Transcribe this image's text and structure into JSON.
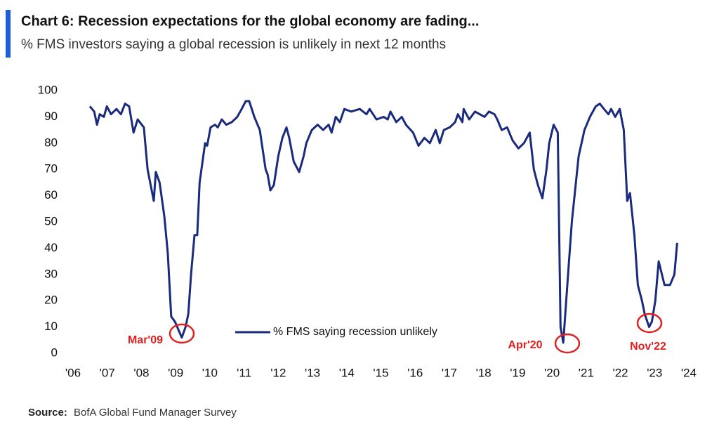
{
  "chart_data": {
    "type": "line",
    "title": "Chart 6: Recession expectations for the global economy are fading...",
    "subtitle": "% FMS investors saying a global recession is unlikely in next 12 months",
    "source": {
      "label": "Source:",
      "text": "BofA Global Fund Manager Survey"
    },
    "annotations": [
      "Mar'09",
      "Apr'20",
      "Nov'22"
    ],
    "xlim": [
      2006,
      2024
    ],
    "xticks": [
      {
        "value": 2006,
        "label": "'06"
      },
      {
        "value": 2007,
        "label": "'07"
      },
      {
        "value": 2008,
        "label": "'08"
      },
      {
        "value": 2009,
        "label": "'09"
      },
      {
        "value": 2010,
        "label": "'10"
      },
      {
        "value": 2011,
        "label": "'11"
      },
      {
        "value": 2012,
        "label": "'12"
      },
      {
        "value": 2013,
        "label": "'13"
      },
      {
        "value": 2014,
        "label": "'14"
      },
      {
        "value": 2015,
        "label": "'15"
      },
      {
        "value": 2016,
        "label": "'16"
      },
      {
        "value": 2017,
        "label": "'17"
      },
      {
        "value": 2018,
        "label": "'18"
      },
      {
        "value": 2019,
        "label": "'19"
      },
      {
        "value": 2020,
        "label": "'20"
      },
      {
        "value": 2021,
        "label": "'21"
      },
      {
        "value": 2022,
        "label": "'22"
      },
      {
        "value": 2023,
        "label": "'23"
      },
      {
        "value": 2024,
        "label": "'24"
      }
    ],
    "ylim": [
      0,
      100
    ],
    "yticks": [
      0,
      10,
      20,
      30,
      40,
      50,
      60,
      70,
      80,
      90,
      100
    ],
    "grid": false,
    "x": [
      2006.49,
      2006.62,
      2006.7,
      2006.78,
      2006.9,
      2006.99,
      2007.11,
      2007.27,
      2007.4,
      2007.52,
      2007.64,
      2007.77,
      2007.89,
      2008.07,
      2008.18,
      2008.36,
      2008.42,
      2008.53,
      2008.67,
      2008.77,
      2008.87,
      2008.98,
      2009.18,
      2009.29,
      2009.37,
      2009.45,
      2009.55,
      2009.63,
      2009.7,
      2009.86,
      2009.92,
      2010.02,
      2010.15,
      2010.23,
      2010.35,
      2010.48,
      2010.64,
      2010.8,
      2010.93,
      2011.05,
      2011.15,
      2011.3,
      2011.46,
      2011.63,
      2011.69,
      2011.77,
      2011.87,
      2012.0,
      2012.12,
      2012.24,
      2012.32,
      2012.45,
      2012.61,
      2012.74,
      2012.82,
      2012.98,
      2013.15,
      2013.31,
      2013.47,
      2013.56,
      2013.68,
      2013.8,
      2013.93,
      2014.13,
      2014.38,
      2014.58,
      2014.67,
      2014.87,
      2015.08,
      2015.2,
      2015.28,
      2015.45,
      2015.61,
      2015.73,
      2015.94,
      2016.1,
      2016.27,
      2016.43,
      2016.6,
      2016.72,
      2016.84,
      2017.01,
      2017.17,
      2017.25,
      2017.38,
      2017.42,
      2017.58,
      2017.75,
      2018.03,
      2018.16,
      2018.32,
      2018.4,
      2018.53,
      2018.69,
      2018.85,
      2019.02,
      2019.18,
      2019.35,
      2019.47,
      2019.59,
      2019.72,
      2019.84,
      2019.92,
      2020.05,
      2020.17,
      2020.25,
      2020.33,
      2020.46,
      2020.58,
      2020.78,
      2020.95,
      2021.11,
      2021.28,
      2021.4,
      2021.52,
      2021.65,
      2021.73,
      2021.85,
      2021.98,
      2022.1,
      2022.2,
      2022.28,
      2022.41,
      2022.51,
      2022.63,
      2022.71,
      2022.84,
      2022.92,
      2023.02,
      2023.12,
      2023.29,
      2023.45,
      2023.58,
      2023.66
    ],
    "series": [
      {
        "name": "% FMS saying recession unlikely",
        "color": "#1a2a7c",
        "values": [
          94,
          92,
          87,
          91,
          90,
          94,
          91,
          93,
          91,
          95,
          94,
          84,
          89,
          86,
          70,
          58,
          69,
          65,
          52,
          38,
          14,
          12,
          6,
          10,
          15,
          30,
          45,
          45,
          65,
          80,
          79,
          86,
          87,
          86,
          89,
          87,
          88,
          90,
          93,
          96,
          96,
          90,
          85,
          70,
          68,
          62,
          64,
          75,
          82,
          86,
          82,
          73,
          69,
          75,
          80,
          85,
          87,
          85,
          87,
          84,
          90,
          88,
          93,
          92,
          93,
          91,
          93,
          89,
          90,
          89,
          92,
          88,
          90,
          87,
          84,
          79,
          82,
          80,
          85,
          80,
          85,
          86,
          88,
          91,
          88,
          93,
          89,
          92,
          90,
          92,
          91,
          89,
          85,
          86,
          81,
          78,
          80,
          84,
          70,
          64,
          59,
          70,
          80,
          87,
          84,
          10,
          4,
          28,
          50,
          75,
          85,
          90,
          94,
          95,
          93,
          91,
          93,
          90,
          93,
          85,
          58,
          61,
          45,
          26,
          20,
          15,
          10,
          12,
          20,
          35,
          26,
          26,
          30,
          42
        ]
      }
    ]
  }
}
